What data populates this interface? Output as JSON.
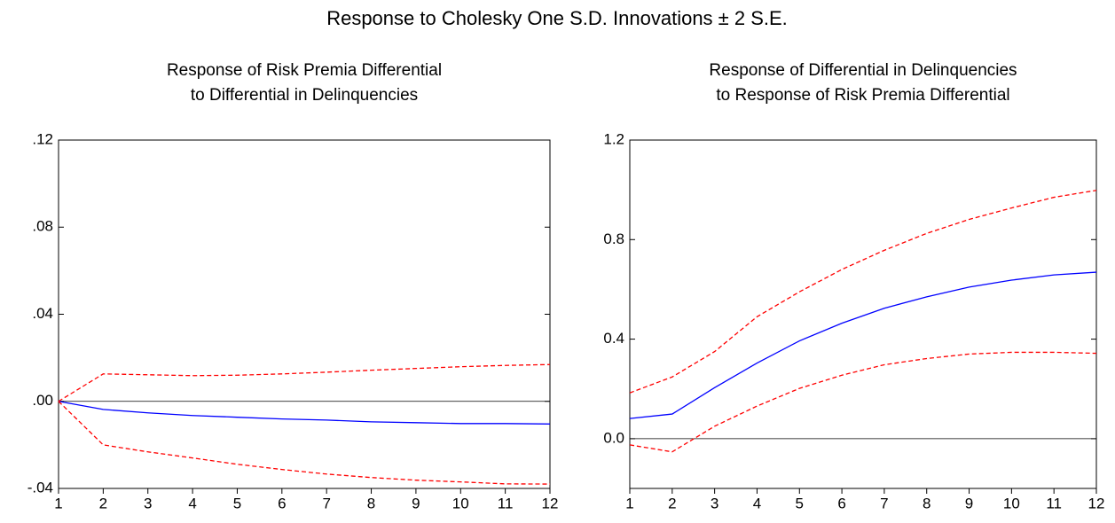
{
  "title": "Response to Cholesky One S.D. Innovations ± 2 S.E.",
  "chart_data": [
    {
      "type": "line",
      "title": [
        "Response of Risk Premia Differential",
        "to Differential in Delinquencies"
      ],
      "x": [
        1,
        2,
        3,
        4,
        5,
        6,
        7,
        8,
        9,
        10,
        11,
        12
      ],
      "xlim": [
        1,
        12
      ],
      "xticks": [
        1,
        2,
        3,
        4,
        5,
        6,
        7,
        8,
        9,
        10,
        11,
        12
      ],
      "ylim": [
        -0.04,
        0.12
      ],
      "yticks": [
        {
          "value": -0.04,
          "label": "-.04"
        },
        {
          "value": 0,
          "label": ".00"
        },
        {
          "value": 0.04,
          "label": ".04"
        },
        {
          "value": 0.08,
          "label": ".08"
        },
        {
          "value": 0.12,
          "label": ".12"
        }
      ],
      "series": [
        {
          "color": "#0000ff",
          "dash": false,
          "values": [
            0,
            -0.0037,
            -0.0053,
            -0.0065,
            -0.0073,
            -0.0081,
            -0.0086,
            -0.0094,
            -0.0098,
            -0.0102,
            -0.0102,
            -0.0104
          ]
        },
        {
          "color": "#ff0000",
          "dash": true,
          "values": [
            0,
            0.0126,
            0.0122,
            0.0118,
            0.012,
            0.0126,
            0.0134,
            0.0143,
            0.0151,
            0.0159,
            0.0165,
            0.0169
          ]
        },
        {
          "color": "#ff0000",
          "dash": true,
          "values": [
            0,
            -0.02,
            -0.0232,
            -0.026,
            -0.0289,
            -0.0313,
            -0.0334,
            -0.035,
            -0.0362,
            -0.037,
            -0.0379,
            -0.038
          ]
        }
      ]
    },
    {
      "type": "line",
      "title": [
        "Response of Differential in Delinquencies",
        "to Response of Risk Premia Differential"
      ],
      "x": [
        1,
        2,
        3,
        4,
        5,
        6,
        7,
        8,
        9,
        10,
        11,
        12
      ],
      "xlim": [
        1,
        12
      ],
      "xticks": [
        1,
        2,
        3,
        4,
        5,
        6,
        7,
        8,
        9,
        10,
        11,
        12
      ],
      "ylim": [
        -0.2,
        1.2
      ],
      "yticks": [
        {
          "value": 0,
          "label": "0.0"
        },
        0.4,
        0.8,
        1.2
      ],
      "series": [
        {
          "color": "#0000ff",
          "dash": false,
          "values": [
            0.081,
            0.099,
            0.205,
            0.304,
            0.393,
            0.464,
            0.524,
            0.57,
            0.609,
            0.637,
            0.658,
            0.669
          ]
        },
        {
          "color": "#ff0000",
          "dash": true,
          "values": [
            0.184,
            0.248,
            0.35,
            0.49,
            0.59,
            0.68,
            0.757,
            0.825,
            0.881,
            0.927,
            0.97,
            0.998
          ]
        },
        {
          "color": "#ff0000",
          "dash": true,
          "values": [
            -0.025,
            -0.053,
            0.05,
            0.131,
            0.202,
            0.255,
            0.297,
            0.322,
            0.34,
            0.347,
            0.347,
            0.343
          ]
        }
      ]
    }
  ]
}
